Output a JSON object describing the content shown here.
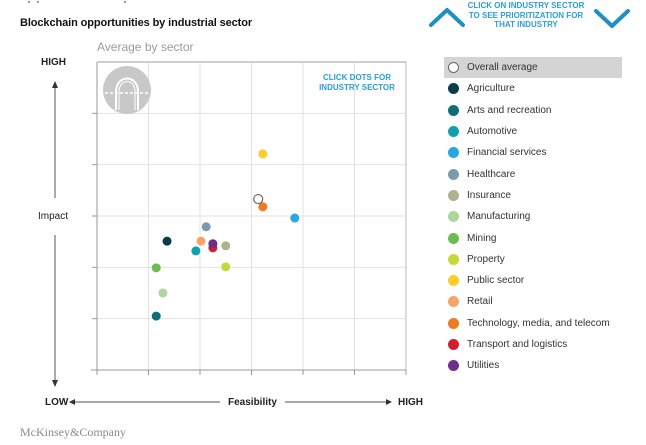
{
  "header": {
    "title": "Blockchain opportunities by industrial sector",
    "subtitle": "Average by sector",
    "nav_hint": "CLICK ON INDUSTRY SECTOR TO SEE PRIORITIZATION FOR THAT INDUSTRY",
    "nav_prev_icon": "chevron-up-icon",
    "nav_next_icon": "chevron-down-icon"
  },
  "chart_hint": "CLICK DOTS FOR INDUSTRY SECTOR",
  "badge_icon": "arch-icon",
  "brand": "McKinsey&Company",
  "colors": {
    "accent": "#2a9fd6",
    "grid": "#e2e2e2",
    "axis": "#999999"
  },
  "chart_data": {
    "type": "scatter",
    "title": "Blockchain opportunities by industrial sector",
    "subtitle": "Average by sector",
    "xlabel": "Feasibility",
    "ylabel": "Impact",
    "x_low_label": "LOW",
    "x_high_label": "HIGH",
    "y_high_label": "HIGH",
    "xlim": [
      0,
      6
    ],
    "ylim": [
      0,
      6
    ],
    "grid": true,
    "legend_position": "right",
    "series": [
      {
        "name": "Overall average",
        "color": "#ffffff",
        "hollow": true,
        "x": 3.13,
        "y": 3.33,
        "selected": true
      },
      {
        "name": "Agriculture",
        "color": "#0b3d48",
        "x": 1.36,
        "y": 2.51
      },
      {
        "name": "Arts and recreation",
        "color": "#116e78",
        "x": 1.15,
        "y": 1.05
      },
      {
        "name": "Automotive",
        "color": "#13a0ad",
        "x": 1.92,
        "y": 2.32
      },
      {
        "name": "Financial services",
        "color": "#29a8e0",
        "x": 3.84,
        "y": 2.96
      },
      {
        "name": "Healthcare",
        "color": "#7b9aae",
        "x": 2.12,
        "y": 2.79
      },
      {
        "name": "Insurance",
        "color": "#b1b08f",
        "x": 2.5,
        "y": 2.42
      },
      {
        "name": "Manufacturing",
        "color": "#acd69b",
        "x": 1.28,
        "y": 1.5
      },
      {
        "name": "Mining",
        "color": "#6cbd4f",
        "x": 1.15,
        "y": 1.99
      },
      {
        "name": "Property",
        "color": "#c6d83a",
        "x": 2.5,
        "y": 2.01
      },
      {
        "name": "Public sector",
        "color": "#fccb2c",
        "x": 3.22,
        "y": 4.21
      },
      {
        "name": "Retail",
        "color": "#f5a56a",
        "x": 2.02,
        "y": 2.51
      },
      {
        "name": "Technology, media, and telecom",
        "color": "#ef7a1f",
        "x": 3.22,
        "y": 3.18
      },
      {
        "name": "Transport and logistics",
        "color": "#d01f32",
        "x": 2.25,
        "y": 2.38
      },
      {
        "name": "Utilities",
        "color": "#6c2f8c",
        "x": 2.25,
        "y": 2.46
      }
    ]
  }
}
